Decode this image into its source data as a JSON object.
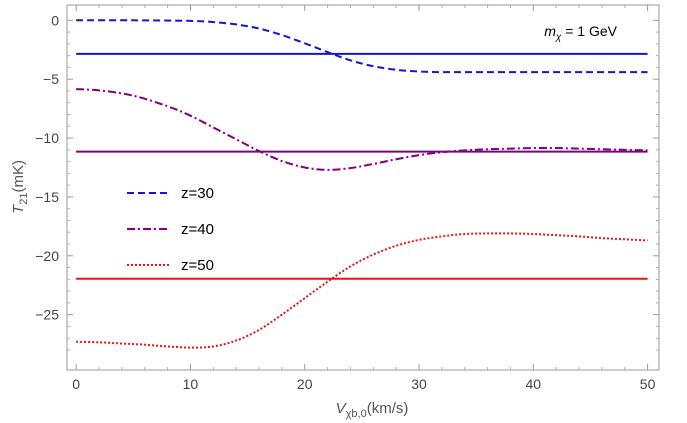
{
  "chart_data": {
    "type": "line",
    "title": "",
    "annotation": {
      "var": "m",
      "sub": "χ",
      "rest": " = 1 GeV"
    },
    "xlabel": {
      "var": "V",
      "sub": "χb,0",
      "rest": "(km/s)"
    },
    "ylabel": {
      "var": "T",
      "sub": "21",
      "rest": "(mK)"
    },
    "xlim": [
      -0.8,
      51
    ],
    "ylim": [
      -29.7,
      1.3
    ],
    "xticks": [
      0,
      10,
      20,
      30,
      40,
      50
    ],
    "yticks": [
      0,
      -5,
      -10,
      -15,
      -20,
      -25
    ],
    "ytick_labels": [
      "0",
      "−5",
      "−10",
      "−15",
      "−20",
      "−25"
    ],
    "grid": false,
    "legend_position": "left-middle",
    "series": [
      {
        "name": "z=30",
        "color": "#1515d6",
        "dash": "dashed",
        "x": [
          0,
          5,
          10,
          12,
          14,
          16,
          18,
          20,
          22,
          24,
          26,
          28,
          30,
          32,
          35,
          40,
          45,
          50
        ],
        "y": [
          0,
          0,
          -0.05,
          -0.15,
          -0.35,
          -0.7,
          -1.25,
          -1.95,
          -2.7,
          -3.4,
          -3.9,
          -4.2,
          -4.35,
          -4.4,
          -4.4,
          -4.4,
          -4.4,
          -4.4
        ],
        "flat_value": -2.85
      },
      {
        "name": "z=40",
        "color": "#800080",
        "dash": "dashdot",
        "x": [
          0,
          2,
          5,
          8,
          10,
          12,
          14,
          16,
          18,
          20,
          22,
          24,
          26,
          28,
          30,
          32,
          34,
          36,
          38,
          40,
          42,
          44,
          46,
          48,
          50
        ],
        "y": [
          -5.85,
          -5.95,
          -6.4,
          -7.3,
          -8.1,
          -9.1,
          -10.1,
          -11.1,
          -11.95,
          -12.5,
          -12.7,
          -12.55,
          -12.2,
          -11.8,
          -11.45,
          -11.2,
          -11.05,
          -10.95,
          -10.9,
          -10.85,
          -10.85,
          -10.9,
          -10.95,
          -11.0,
          -11.05
        ],
        "flat_value": -11.15
      },
      {
        "name": "z=50",
        "color": "#ee1111",
        "dash": "dotted",
        "x": [
          0,
          2,
          4,
          6,
          8,
          10,
          12,
          14,
          16,
          18,
          20,
          22,
          24,
          26,
          28,
          30,
          32,
          34,
          36,
          38,
          40,
          42,
          44,
          46,
          48,
          50
        ],
        "y": [
          -27.3,
          -27.35,
          -27.45,
          -27.55,
          -27.7,
          -27.8,
          -27.7,
          -27.2,
          -26.3,
          -25.0,
          -23.6,
          -22.2,
          -20.9,
          -19.9,
          -19.15,
          -18.65,
          -18.35,
          -18.15,
          -18.1,
          -18.1,
          -18.15,
          -18.25,
          -18.35,
          -18.5,
          -18.6,
          -18.7
        ],
        "flat_value": -21.95
      }
    ]
  }
}
